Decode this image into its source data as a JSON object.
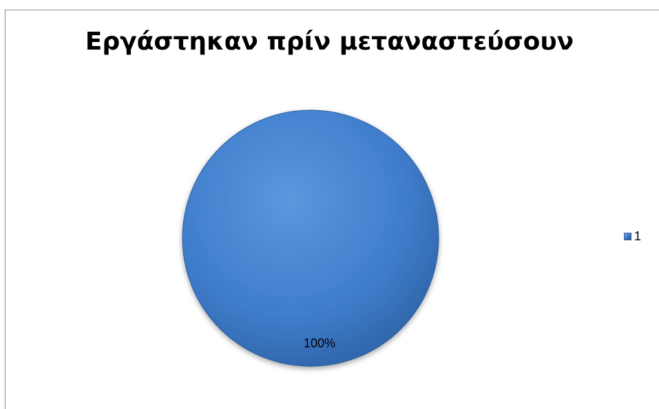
{
  "chart_data": {
    "type": "pie",
    "title": "Εργάστηκαν πρίν μεταναστεύσουν",
    "categories": [
      "1"
    ],
    "values": [
      100
    ],
    "data_labels": [
      "100%"
    ],
    "legend": {
      "placement": "right",
      "entries": [
        "1"
      ]
    },
    "colors": {
      "slice": "#3f7dcc",
      "slice_highlight": "#5b97de",
      "slice_shadow": "#2c5e9f"
    }
  }
}
